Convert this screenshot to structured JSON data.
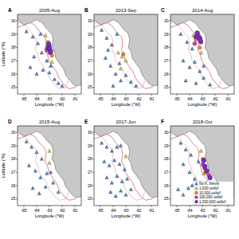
{
  "chart_data": [
    {
      "type": "scatter",
      "title": "A",
      "subtitle": "2005-Aug",
      "x_label": "Longitude (°W)",
      "y_label": "Latitude (°N)",
      "xlim": [
        -85.5,
        -80.5
      ],
      "ylim": [
        24.5,
        30.5
      ],
      "xticks": [
        -85,
        -84,
        -83,
        -82,
        -81
      ],
      "yticks": [
        25,
        26,
        27,
        28,
        29,
        30
      ],
      "series": [
        {
          "color": "#4a90d9",
          "marker": "triangle",
          "x": [
            -84.8,
            -84.3,
            -83.9,
            -83.6,
            -83.2,
            -84.5,
            -84.0,
            -83.5,
            -83.0,
            -82.6,
            -82.3,
            -82.0,
            -84.2,
            -83.7,
            -82.9
          ],
          "values": [
            29.2,
            28.8,
            28.3,
            27.6,
            27.0,
            26.5,
            26.0,
            26.3,
            26.1,
            25.6,
            25.3,
            25.1,
            27.3,
            29.0,
            26.6
          ]
        },
        {
          "color": "#f2d23c",
          "marker": "triangle",
          "x": [
            -83.3,
            -82.8
          ],
          "values": [
            28.9,
            26.9
          ]
        },
        {
          "color": "#f08a24",
          "marker": "circle",
          "x": [
            -83.1,
            -82.8
          ],
          "values": [
            28.4,
            27.4
          ]
        },
        {
          "color": "#d63ab4",
          "marker": "circle",
          "x": [
            -83.0,
            -83.2,
            -82.95
          ],
          "values": [
            28.1,
            27.8,
            27.6
          ]
        },
        {
          "color": "#7b2cbf",
          "marker": "circle",
          "x": [
            -83.1,
            -83.0,
            -82.9,
            -83.05
          ],
          "values": [
            28.0,
            27.9,
            27.7,
            28.25
          ]
        }
      ]
    },
    {
      "type": "scatter",
      "title": "B",
      "subtitle": "2013-Sep",
      "x_label": "Longitude (°W)",
      "xlim": [
        -85.5,
        -80.5
      ],
      "ylim": [
        24.5,
        30.5
      ],
      "xticks": [
        -85,
        -84,
        -83,
        -82,
        -81
      ],
      "yticks": [
        25,
        26,
        27,
        28,
        29,
        30
      ],
      "series": [
        {
          "color": "#4a90d9",
          "marker": "triangle",
          "x": [
            -84.9,
            -84.5,
            -84.1,
            -83.7,
            -84.6,
            -84.2,
            -83.8,
            -83.4,
            -84.0,
            -83.5,
            -83.0,
            -82.6,
            -82.2,
            -84.4
          ],
          "values": [
            29.3,
            28.7,
            28.2,
            29.0,
            27.2,
            26.6,
            26.0,
            25.5,
            25.1,
            26.8,
            25.9,
            25.4,
            25.1,
            27.8
          ]
        },
        {
          "color": "#f2d23c",
          "marker": "triangle",
          "x": [
            -83.6,
            -83.3,
            -83.0,
            -83.4
          ],
          "values": [
            27.6,
            27.3,
            27.0,
            26.4
          ]
        },
        {
          "color": "#f08a24",
          "marker": "circle",
          "x": [
            -83.2
          ],
          "values": [
            27.5
          ]
        }
      ]
    },
    {
      "type": "scatter",
      "title": "C",
      "subtitle": "2014-Aug",
      "x_label": "Longitude (°W)",
      "xlim": [
        -85.5,
        -80.5
      ],
      "ylim": [
        24.5,
        30.5
      ],
      "xticks": [
        -85,
        -84,
        -83,
        -82,
        -81
      ],
      "yticks": [
        25,
        26,
        27,
        28,
        29,
        30
      ],
      "series": [
        {
          "color": "#4a90d9",
          "marker": "triangle",
          "x": [
            -84.7,
            -84.2,
            -83.8,
            -84.5,
            -84.0,
            -83.6,
            -83.2,
            -82.9,
            -84.3,
            -83.5,
            -82.9,
            -82.4
          ],
          "values": [
            29.0,
            28.4,
            27.9,
            27.0,
            26.5,
            26.9,
            26.2,
            26.6,
            25.5,
            25.3,
            25.7,
            25.2
          ]
        },
        {
          "color": "#f2d23c",
          "marker": "triangle",
          "x": [
            -83.7,
            -83.1
          ],
          "values": [
            28.9,
            27.6
          ]
        },
        {
          "color": "#f08a24",
          "marker": "circle",
          "x": [
            -83.5,
            -83.2
          ],
          "values": [
            28.6,
            28.0
          ]
        },
        {
          "color": "#d63ab4",
          "marker": "circle",
          "x": [
            -83.3,
            -83.6,
            -83.1
          ],
          "values": [
            28.9,
            28.3,
            28.4
          ]
        },
        {
          "color": "#7b2cbf",
          "marker": "circle",
          "x": [
            -83.4,
            -83.2,
            -83.5,
            -83.15
          ],
          "values": [
            29.1,
            28.7,
            28.8,
            28.5
          ]
        }
      ]
    },
    {
      "type": "scatter",
      "title": "D",
      "subtitle": "2015-Aug",
      "x_label": "Longitude (°W)",
      "y_label": "Latitude (°N)",
      "xlim": [
        -85.5,
        -80.5
      ],
      "ylim": [
        24.5,
        30.5
      ],
      "xticks": [
        -85,
        -84,
        -83,
        -82,
        -81
      ],
      "yticks": [
        25,
        26,
        27,
        28,
        29,
        30
      ],
      "series": [
        {
          "color": "#4a90d9",
          "marker": "triangle",
          "x": [
            -84.8,
            -84.4,
            -84.0,
            -83.6,
            -84.6,
            -84.1,
            -83.7,
            -83.2,
            -82.9,
            -84.3,
            -83.8,
            -83.3,
            -82.7,
            -82.3
          ],
          "values": [
            29.3,
            28.9,
            28.5,
            28.0,
            27.5,
            27.1,
            26.6,
            26.9,
            27.0,
            25.8,
            25.4,
            25.9,
            26.2,
            25.5
          ]
        },
        {
          "color": "#f2d23c",
          "marker": "triangle",
          "x": [
            -83.0,
            -83.0
          ],
          "values": [
            28.6,
            27.7
          ]
        }
      ]
    },
    {
      "type": "scatter",
      "title": "E",
      "subtitle": "2017-Jun",
      "x_label": "Longitude (°W)",
      "xlim": [
        -85.5,
        -80.5
      ],
      "ylim": [
        24.5,
        30.5
      ],
      "xticks": [
        -85,
        -84,
        -83,
        -82,
        -81
      ],
      "yticks": [
        25,
        26,
        27,
        28,
        29,
        30
      ],
      "series": [
        {
          "color": "#4a90d9",
          "marker": "triangle",
          "x": [
            -84.9,
            -84.5,
            -84.1,
            -83.7,
            -83.4,
            -84.7,
            -84.3,
            -83.9,
            -83.5,
            -83.1,
            -84.5,
            -84.1,
            -83.7,
            -83.3,
            -82.9,
            -84.2,
            -83.8,
            -83.4,
            -83.0,
            -82.6
          ],
          "values": [
            29.2,
            28.9,
            28.6,
            28.9,
            29.0,
            27.8,
            27.5,
            27.9,
            27.6,
            27.2,
            26.6,
            26.2,
            26.7,
            26.3,
            26.5,
            25.5,
            25.2,
            25.6,
            25.3,
            25.7
          ]
        },
        {
          "color": "#f2d23c",
          "marker": "triangle",
          "x": [
            -83.0
          ],
          "values": [
            28.2
          ]
        }
      ]
    },
    {
      "type": "scatter",
      "title": "F",
      "subtitle": "2018-Oct",
      "x_label": "Longitude (°W)",
      "legend": "lower right",
      "xlim": [
        -85.5,
        -80.5
      ],
      "ylim": [
        24.5,
        30.5
      ],
      "xticks": [
        -85,
        -84,
        -83,
        -82,
        -81
      ],
      "yticks": [
        25,
        26,
        27,
        28,
        29,
        30
      ],
      "series": [
        {
          "name": "No K. brevis",
          "color": "#4a90d9",
          "marker": "triangle",
          "x": [
            -84.7,
            -84.3,
            -83.9,
            -84.5,
            -84.0,
            -83.6,
            -83.3,
            -84.9,
            -84.5,
            -84.1,
            -83.8
          ],
          "values": [
            29.2,
            28.7,
            28.3,
            27.6,
            27.0,
            26.5,
            27.8,
            25.7,
            25.3,
            25.8,
            26.0
          ]
        },
        {
          "name": "1,000 cells/l",
          "color": "#f2d23c",
          "marker": "triangle",
          "x": [
            -83.1,
            -82.9
          ],
          "values": [
            28.6,
            26.9
          ]
        },
        {
          "name": "10,000 cells/l",
          "color": "#f08a24",
          "marker": "circle",
          "x": [
            -82.95,
            -82.75
          ],
          "values": [
            28.0,
            27.0
          ]
        },
        {
          "name": "100,000 cells/l",
          "color": "#d63ab4",
          "marker": "circle",
          "x": [
            -82.95,
            -82.8,
            -82.5
          ],
          "values": [
            27.6,
            27.3,
            26.8
          ]
        },
        {
          "name": "1,000,000 cells/l",
          "color": "#7b2cbf",
          "marker": "circle",
          "x": [
            -82.9,
            -82.8,
            -82.65,
            -82.4
          ],
          "values": [
            27.9,
            27.45,
            27.1,
            26.6
          ]
        }
      ]
    }
  ]
}
